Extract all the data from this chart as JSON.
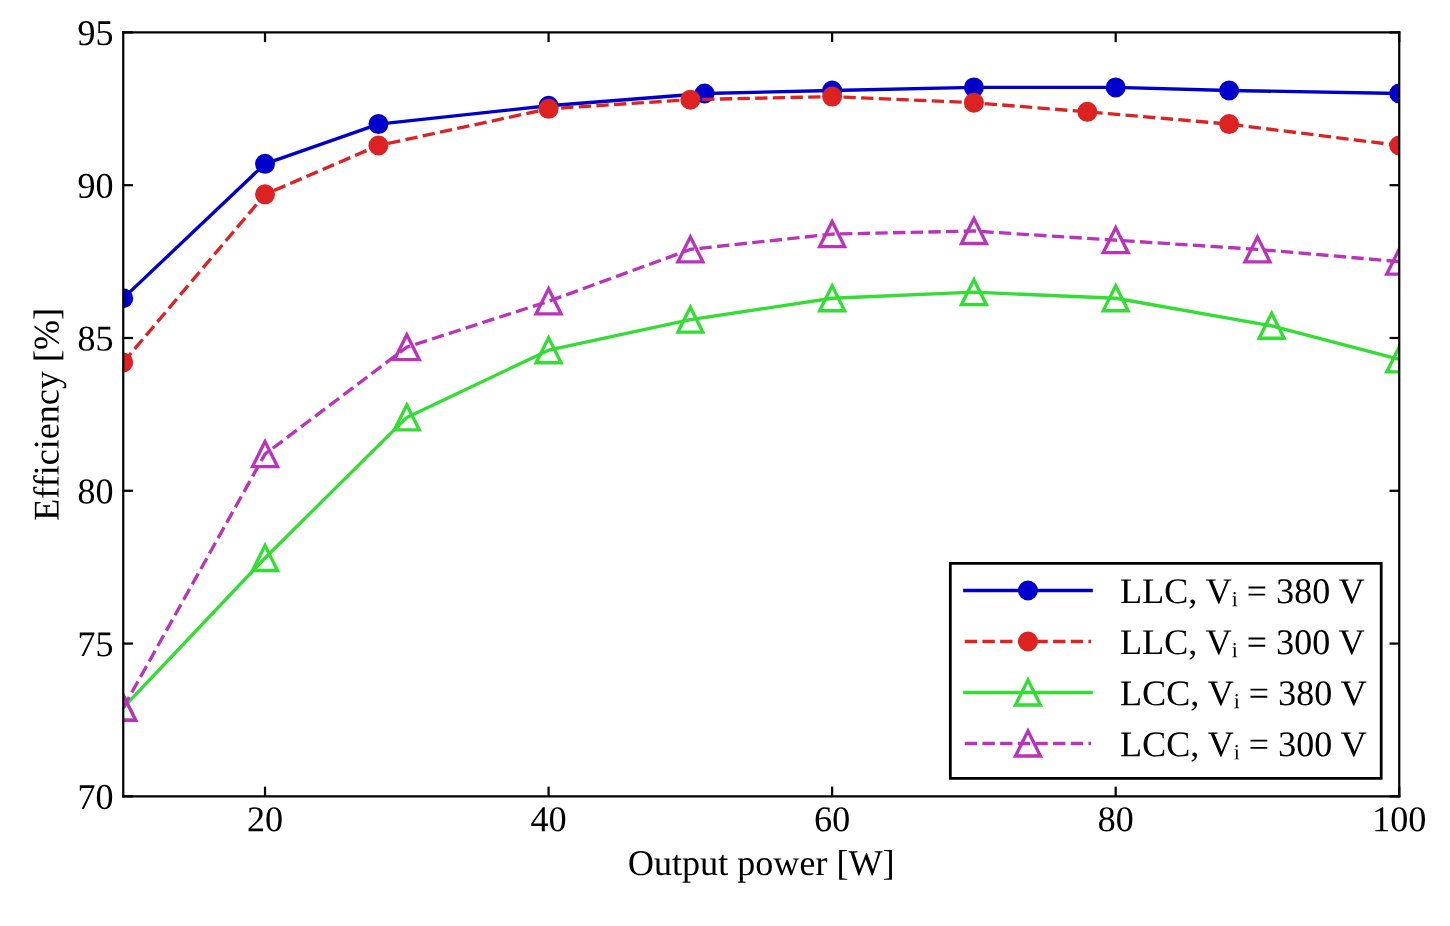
{
  "chart_data": {
    "type": "line",
    "xlabel": "Output power [W]",
    "ylabel": "Efficiency [%]",
    "xlim": [
      10,
      100
    ],
    "ylim": [
      70,
      95
    ],
    "xticks": [
      20,
      40,
      60,
      80,
      100
    ],
    "yticks": [
      70,
      75,
      80,
      85,
      90,
      95
    ],
    "grid": false,
    "legend": "bottom right",
    "series": [
      {
        "name": "LLC, Vᵢ = 380 V",
        "color": "#0000cc",
        "marker": "circle",
        "line_style": "solid",
        "x": [
          10,
          20,
          28,
          40,
          51,
          60,
          70,
          80,
          88,
          100
        ],
        "values": [
          86.3,
          90.7,
          92.0,
          92.6,
          93.0,
          93.1,
          93.2,
          93.2,
          93.1,
          93.0
        ]
      },
      {
        "name": "LLC, Vᵢ = 300 V",
        "color": "#dd2222",
        "marker": "circle",
        "line_style": "dashed",
        "x": [
          10,
          20,
          28,
          40,
          50,
          60,
          70,
          78,
          88,
          100
        ],
        "values": [
          84.2,
          89.7,
          91.3,
          92.5,
          92.8,
          92.9,
          92.7,
          92.4,
          92.0,
          91.3
        ]
      },
      {
        "name": "LCC, Vᵢ = 380 V",
        "color": "#33dd33",
        "marker": "triangle",
        "line_style": "solid",
        "x": [
          10,
          20,
          30,
          40,
          50,
          60,
          70,
          80,
          91,
          100
        ],
        "values": [
          72.9,
          77.8,
          82.4,
          84.6,
          85.6,
          86.3,
          86.5,
          86.3,
          85.4,
          84.3
        ]
      },
      {
        "name": "LCC, Vᵢ = 300 V",
        "color": "#bb33bb",
        "marker": "triangle",
        "line_style": "dashed",
        "x": [
          10,
          20,
          30,
          40,
          50,
          60,
          70,
          80,
          90,
          100
        ],
        "values": [
          72.9,
          81.2,
          84.7,
          86.2,
          87.9,
          88.4,
          88.5,
          88.2,
          87.9,
          87.5
        ]
      }
    ]
  }
}
